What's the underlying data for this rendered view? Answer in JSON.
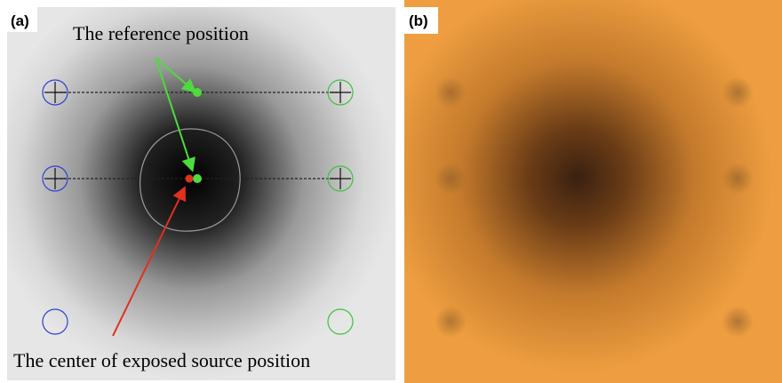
{
  "panels": [
    {
      "label": "(a)"
    },
    {
      "label": "(b)"
    }
  ],
  "annotations": {
    "reference": "The reference position",
    "center": "The center of exposed source position"
  }
}
